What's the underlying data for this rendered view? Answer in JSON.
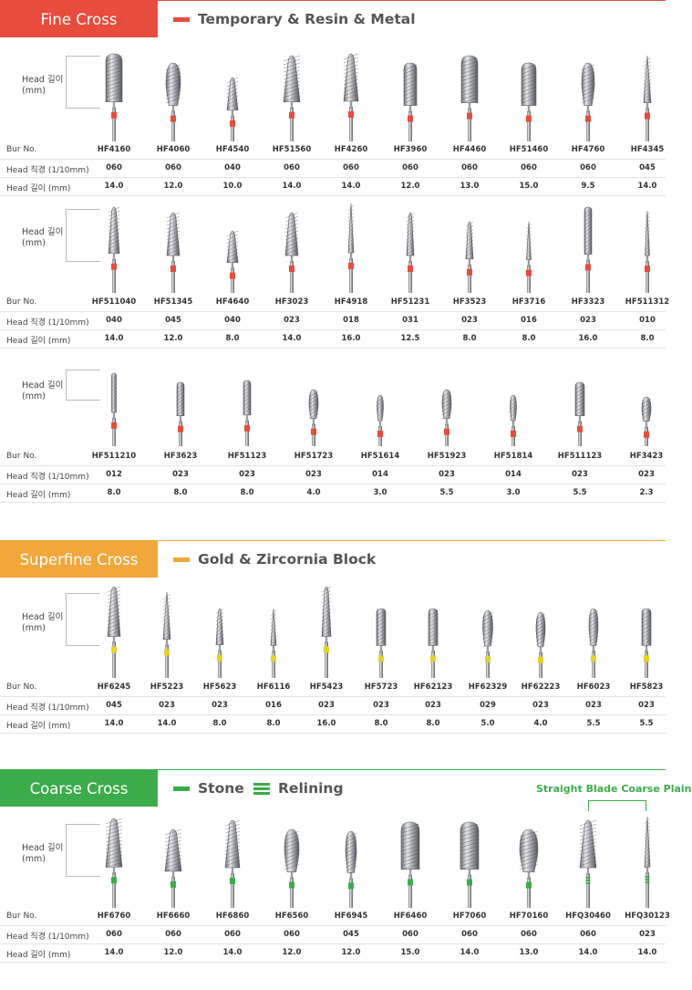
{
  "labels": {
    "head_length": "Head 길이",
    "unit": "(mm)",
    "bur_no": "Bur No.",
    "head_diameter": "Head 직경 (1/10mm)",
    "head_len_row": "Head 길이 (mm)"
  },
  "fine": {
    "title": "Fine Cross",
    "color": "#e84c3d",
    "legend": "Temporary & Resin & Metal",
    "groups": [
      {
        "bur": [
          "HF4160",
          "HF4060",
          "HF4540",
          "HF51560",
          "HF4260",
          "HF3960",
          "HF4460",
          "HF51460",
          "HF4760",
          "HF4345"
        ],
        "dia": [
          "060",
          "060",
          "040",
          "060",
          "060",
          "060",
          "060",
          "060",
          "060",
          "045"
        ],
        "len": [
          "14.0",
          "12.0",
          "10.0",
          "14.0",
          "14.0",
          "12.0",
          "13.0",
          "15.0",
          "9.5",
          "14.0"
        ]
      },
      {
        "bur": [
          "HF511040",
          "HF51345",
          "HF4640",
          "HF3023",
          "HF4918",
          "HF51231",
          "HF3523",
          "HF3716",
          "HF3323",
          "HF511312"
        ],
        "dia": [
          "040",
          "045",
          "040",
          "023",
          "018",
          "031",
          "023",
          "016",
          "023",
          "010"
        ],
        "len": [
          "14.0",
          "12.0",
          "8.0",
          "14.0",
          "16.0",
          "12.5",
          "8.0",
          "8.0",
          "16.0",
          "8.0"
        ]
      },
      {
        "bur": [
          "HF511210",
          "HF3623",
          "HF51123",
          "HF51723",
          "HF51614",
          "HF51923",
          "HF51814",
          "HF511123",
          "HF3423"
        ],
        "dia": [
          "012",
          "023",
          "023",
          "023",
          "014",
          "023",
          "014",
          "023",
          "023"
        ],
        "len": [
          "8.0",
          "8.0",
          "8.0",
          "4.0",
          "3.0",
          "5.5",
          "3.0",
          "5.5",
          "2.3"
        ]
      }
    ]
  },
  "superfine": {
    "title": "Superfine Cross",
    "color": "#f0a73c",
    "legend": "Gold & Zircornia Block",
    "bur": [
      "HF6245",
      "HF5223",
      "HF5623",
      "HF6116",
      "HF5423",
      "HF5723",
      "HF62123",
      "HF62329",
      "HF62223",
      "HF6023",
      "HF5823"
    ],
    "dia": [
      "045",
      "023",
      "023",
      "016",
      "023",
      "023",
      "023",
      "029",
      "023",
      "023",
      "023"
    ],
    "len": [
      "14.0",
      "14.0",
      "8.0",
      "8.0",
      "16.0",
      "8.0",
      "8.0",
      "5.0",
      "4.0",
      "5.5",
      "5.5"
    ]
  },
  "coarse": {
    "title": "Coarse Cross",
    "color": "#3cac4a",
    "legend1": "Stone",
    "legend2": "Relining",
    "straight": "Straight Blade Coarse Plain",
    "bur": [
      "HF6760",
      "HF6660",
      "HF6860",
      "HF6560",
      "HF6945",
      "HF6460",
      "HF7060",
      "HF70160",
      "HFQ30460",
      "HFQ30123"
    ],
    "dia": [
      "060",
      "060",
      "060",
      "060",
      "045",
      "060",
      "060",
      "060",
      "060",
      "023"
    ],
    "len": [
      "14.0",
      "12.0",
      "14.0",
      "12.0",
      "12.0",
      "15.0",
      "14.0",
      "13.0",
      "14.0",
      "14.0"
    ]
  }
}
